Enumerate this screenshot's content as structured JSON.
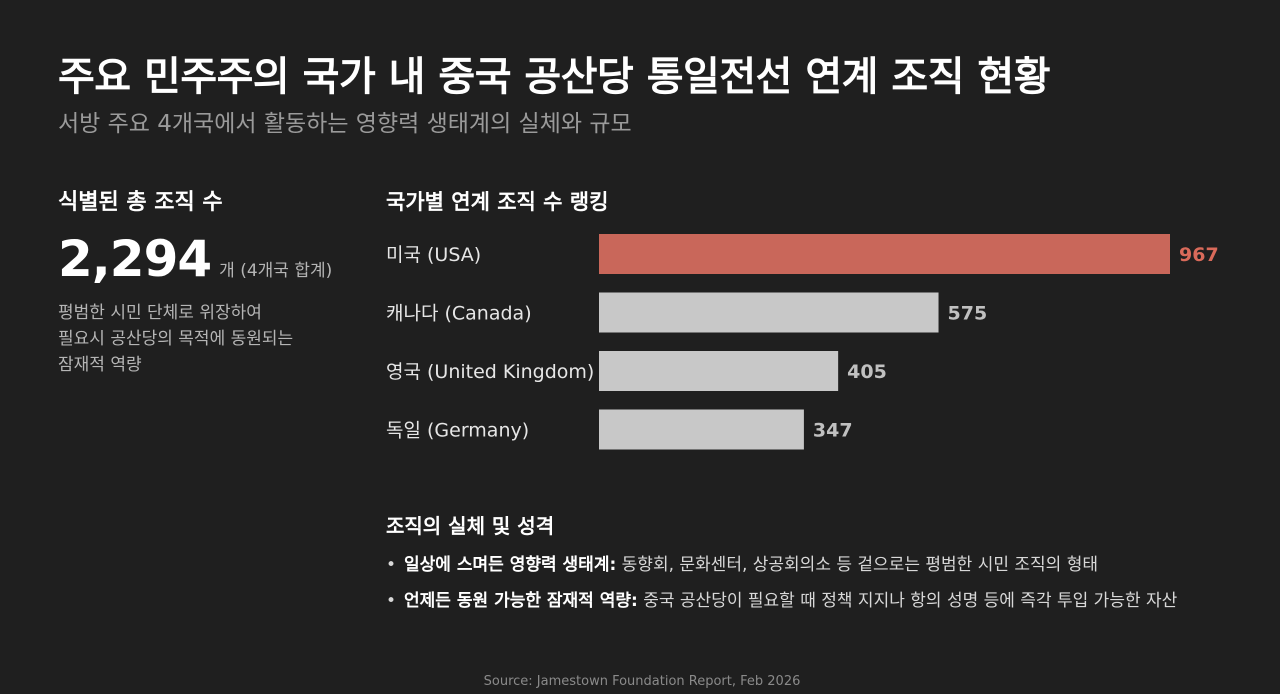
{
  "header": {
    "title": "주요 민주주의 국가 내 중국 공산당 통일전선 연계 조직 현황",
    "subtitle": "서방 주요 4개국에서 활동하는 영향력 생태계의 실체와 규모"
  },
  "summary": {
    "label": "식별된 총 조직 수",
    "total": "2,294",
    "unit": "개 (4개국 합계)",
    "description": "평범한 시민 단체로 위장하여\n필요시 공산당의 목적에 동원되는\n잠재적 역량"
  },
  "chart_data": {
    "type": "bar",
    "orientation": "horizontal",
    "title": "국가별 연계 조직 수 랭킹",
    "categories": [
      "미국 (USA)",
      "캐나다 (Canada)",
      "영국 (United Kingdom)",
      "독일 (Germany)"
    ],
    "values": [
      967,
      575,
      405,
      347
    ],
    "highlight_index": 0,
    "colors": {
      "highlight": "#c9675a",
      "default": "#c8c8c8",
      "highlight_label": "#d96a5a",
      "default_label": "#c0c0c0"
    }
  },
  "nature": {
    "title": "조직의 실체 및 성격",
    "items": [
      {
        "bold": "일상에 스며든 영향력 생태계:",
        "text": " 동향회, 문화센터, 상공회의소 등 겉으로는 평범한 시민 조직의 형태"
      },
      {
        "bold": "언제든 동원 가능한 잠재적 역량:",
        "text": " 중국 공산당이 필요할 때 정책 지지나 항의 성명 등에 즉각 투입 가능한 자산"
      }
    ]
  },
  "footer": {
    "source": "Source: Jamestown Foundation Report, Feb 2026"
  }
}
